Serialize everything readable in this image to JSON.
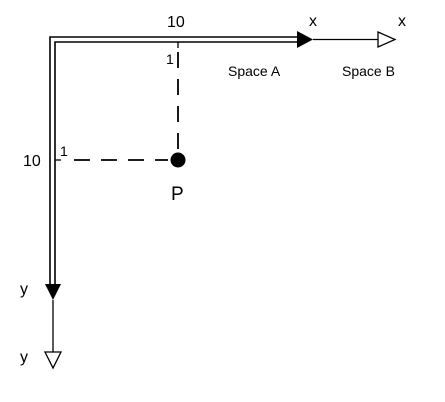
{
  "labels": {
    "x_tick": "10",
    "y_tick": "10",
    "unit_x": "1",
    "unit_y": "1",
    "point": "P",
    "x_axis_a": "x",
    "x_axis_b": "x",
    "y_axis_a": "y",
    "y_axis_b": "y",
    "space_a": "Space A",
    "space_b": "Space B"
  },
  "colors": {
    "ink": "#000000",
    "background": "#ffffff"
  }
}
